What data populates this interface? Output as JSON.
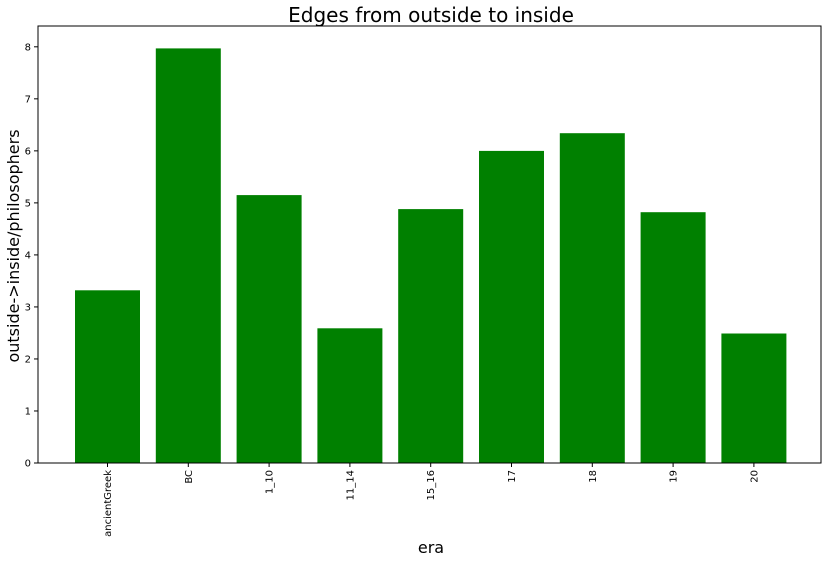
{
  "chart_data": {
    "type": "bar",
    "title": "Edges from outside to inside",
    "xlabel": "era",
    "ylabel": "outside->inside/philosophers",
    "categories": [
      "ancientGreek",
      "BC",
      "1_10",
      "11_14",
      "15_16",
      "17",
      "18",
      "19",
      "20"
    ],
    "values": [
      3.32,
      7.97,
      5.15,
      2.59,
      4.88,
      6.0,
      6.34,
      4.82,
      2.49
    ],
    "ylim": [
      0,
      8.4
    ],
    "yticks": [
      "0",
      "1",
      "2",
      "3",
      "4",
      "5",
      "6",
      "7",
      "8"
    ],
    "grid": false,
    "bar_color": "#008000"
  }
}
